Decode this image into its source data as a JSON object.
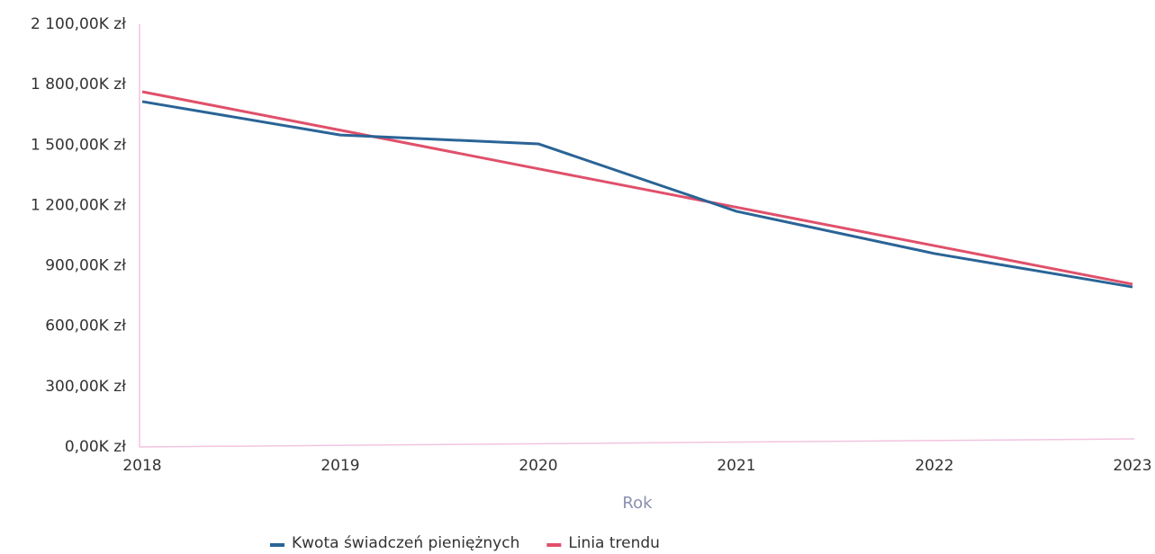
{
  "chart_data": {
    "type": "line",
    "x_label": "Rok",
    "categories": [
      "2018",
      "2019",
      "2020",
      "2021",
      "2022",
      "2023"
    ],
    "series": [
      {
        "name": "Kwota świadczeń pieniężnych",
        "color": "#2a6496",
        "values": [
          1716000,
          1550000,
          1506000,
          1171000,
          961000,
          795000
        ]
      },
      {
        "name": "Linia trendu",
        "color": "#e0506a",
        "values": [
          1765000,
          1574000,
          1382000,
          1191000,
          1000000,
          809000
        ]
      }
    ],
    "ylim": [
      0,
      2100000
    ],
    "yticks": [
      {
        "value": 0,
        "label": "0,00K zł"
      },
      {
        "value": 300000,
        "label": "300,00K zł"
      },
      {
        "value": 600000,
        "label": "600,00K zł"
      },
      {
        "value": 900000,
        "label": "900,00K zł"
      },
      {
        "value": 1200000,
        "label": "1 200,00K zł"
      },
      {
        "value": 1500000,
        "label": "1 500,00K zł"
      },
      {
        "value": 1800000,
        "label": "1 800,00K zł"
      },
      {
        "value": 2100000,
        "label": "2 100,00K zł"
      }
    ],
    "grid": false
  }
}
